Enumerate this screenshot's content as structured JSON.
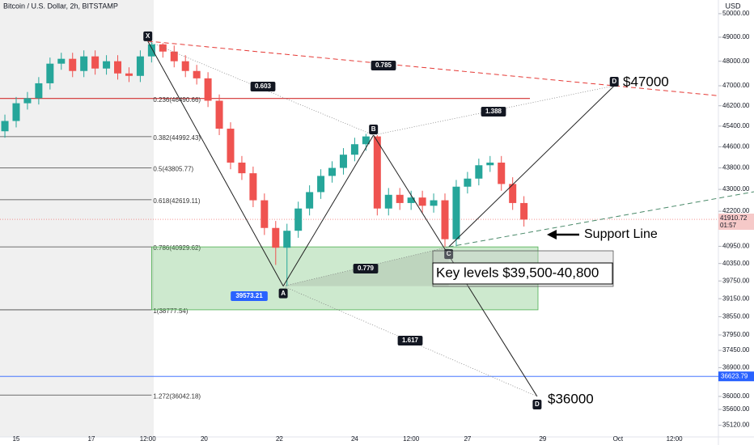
{
  "chart_data": {
    "type": "candlestick",
    "title": "Bitcoin / U.S. Dollar, 2h, BITSTAMP",
    "currency": "USD",
    "log_scale": true,
    "xlim": [
      14.57,
      33.67
    ],
    "ylim": [
      34770,
      50590
    ],
    "xticks": [
      15,
      17,
      {
        "value": 18.5,
        "label": "12:00"
      },
      20,
      22,
      24,
      {
        "value": 25.5,
        "label": "12:00"
      },
      27,
      29,
      {
        "value": 31,
        "label": "Oct"
      },
      {
        "value": 32.5,
        "label": "12:00"
      }
    ],
    "yticks": [
      {
        "value": 50000,
        "label": "50000.00"
      },
      {
        "value": 49000,
        "label": "49000.00"
      },
      {
        "value": 48000,
        "label": "48000.00"
      },
      {
        "value": 47000,
        "label": "47000.00"
      },
      {
        "value": 46200,
        "label": "46200.00"
      },
      {
        "value": 45400,
        "label": "45400.00"
      },
      {
        "value": 44600,
        "label": "44600.00"
      },
      {
        "value": 43800,
        "label": "43800.00"
      },
      {
        "value": 43000,
        "label": "43000.00"
      },
      {
        "value": 42200,
        "label": "42200.00"
      },
      {
        "value": 40950,
        "label": "40950.00"
      },
      {
        "value": 40350,
        "label": "40350.00"
      },
      {
        "value": 39750,
        "label": "39750.00"
      },
      {
        "value": 39150,
        "label": "39150.00"
      },
      {
        "value": 38550,
        "label": "38550.00"
      },
      {
        "value": 37950,
        "label": "37950.00"
      },
      {
        "value": 37450,
        "label": "37450.00"
      },
      {
        "value": 36900,
        "label": "36900.00"
      },
      {
        "value": 36000,
        "label": "36000.00"
      },
      {
        "value": 35600,
        "label": "35600.00"
      },
      {
        "value": 35120,
        "label": "35120.00"
      }
    ],
    "up_color": "#26a69a",
    "down_color": "#ef5350",
    "x": [
      14.7,
      15,
      15.3,
      15.6,
      15.9,
      16.2,
      16.5,
      16.8,
      17.1,
      17.4,
      17.7,
      18,
      18.3,
      18.6,
      18.9,
      19.2,
      19.5,
      19.8,
      20.1,
      20.4,
      20.7,
      21,
      21.3,
      21.6,
      21.9,
      22.2,
      22.5,
      22.8,
      23.1,
      23.4,
      23.7,
      24,
      24.3,
      24.6,
      24.9,
      25.2,
      25.5,
      25.8,
      26.1,
      26.4,
      26.7,
      27,
      27.3,
      27.6,
      27.9,
      28.2,
      28.5
    ],
    "open": [
      45200,
      45600,
      46300,
      46500,
      47100,
      47900,
      48100,
      47600,
      48200,
      47700,
      48000,
      47500,
      47400,
      48200,
      48700,
      48400,
      48000,
      47600,
      47300,
      46400,
      45300,
      44000,
      43600,
      42600,
      41600,
      40900,
      41500,
      42300,
      42900,
      43500,
      43800,
      44300,
      44700,
      45000,
      42300,
      42800,
      42500,
      42700,
      42400,
      42600,
      41200,
      43100,
      43400,
      43900,
      44000,
      43200,
      42500
    ],
    "high": [
      45850,
      46550,
      46750,
      47350,
      48150,
      48350,
      48350,
      48450,
      48450,
      48250,
      48250,
      47750,
      48450,
      48834,
      48750,
      48650,
      48250,
      47850,
      47550,
      46650,
      45550,
      44250,
      43850,
      42850,
      41850,
      41750,
      42550,
      43150,
      43750,
      44050,
      44550,
      44950,
      45100,
      45050,
      43050,
      43050,
      42950,
      42950,
      42850,
      42850,
      43350,
      43650,
      44150,
      44250,
      44250,
      43450,
      42750
    ],
    "low": [
      44950,
      45350,
      46050,
      46250,
      46850,
      47650,
      47350,
      47350,
      47450,
      47450,
      47250,
      47150,
      47150,
      47950,
      48150,
      47750,
      47350,
      47050,
      46150,
      45050,
      43750,
      43350,
      42350,
      41350,
      40300,
      39573,
      41250,
      42050,
      42650,
      43250,
      43550,
      44050,
      44450,
      42050,
      42050,
      42250,
      42250,
      42150,
      42150,
      40930,
      40950,
      42850,
      43150,
      43650,
      42950,
      42250,
      41650
    ],
    "close": [
      45600,
      46300,
      46500,
      47100,
      47900,
      48100,
      47600,
      48200,
      47700,
      48000,
      47500,
      47400,
      48200,
      48700,
      48400,
      48000,
      47600,
      47300,
      46400,
      45300,
      44000,
      43600,
      42600,
      41600,
      40900,
      41500,
      42300,
      42900,
      43500,
      43800,
      44300,
      44700,
      45000,
      42300,
      42800,
      42500,
      42700,
      42400,
      42600,
      41200,
      43100,
      43400,
      43900,
      44000,
      43200,
      42500,
      41900
    ],
    "fib_levels": [
      {
        "label": "0.236(46490.66)",
        "price": 46490.66
      },
      {
        "label": "0.382(44992.43)",
        "price": 44992.43
      },
      {
        "label": "0.5(43805.77)",
        "price": 43805.77
      },
      {
        "label": "0.618(42619.11)",
        "price": 42619.11
      },
      {
        "label": "0.786(40929.62)",
        "price": 40929.62
      },
      {
        "label": "1(38777.54)",
        "price": 38777.54
      },
      {
        "label": "1.272(36042.18)",
        "price": 36042.18
      }
    ],
    "pattern_points": [
      {
        "label": "X",
        "x": 18.5,
        "price": 48834
      },
      {
        "label": "A",
        "x": 22.1,
        "price": 39573.21
      },
      {
        "label": "B",
        "x": 24.5,
        "price": 45050
      },
      {
        "label": "C",
        "x": 26.5,
        "price": 40930
      },
      {
        "label": "D",
        "x": 30.9,
        "price": 47000
      },
      {
        "label": "D",
        "x": 28.85,
        "price": 36000
      }
    ],
    "ratios": [
      "0.603",
      "0.785",
      "1.388",
      "0.779",
      "1.617"
    ],
    "low_tag": "39573.21",
    "targets": [
      "$47000",
      "$36000"
    ],
    "support_label": "Support Line",
    "key_levels": "Key levels $39,500-40,800",
    "last_price": {
      "value": 41910.72,
      "label": "41910.72",
      "countdown": "01:57"
    },
    "blue_level": {
      "value": 36623.79,
      "label": "36623.79"
    }
  }
}
